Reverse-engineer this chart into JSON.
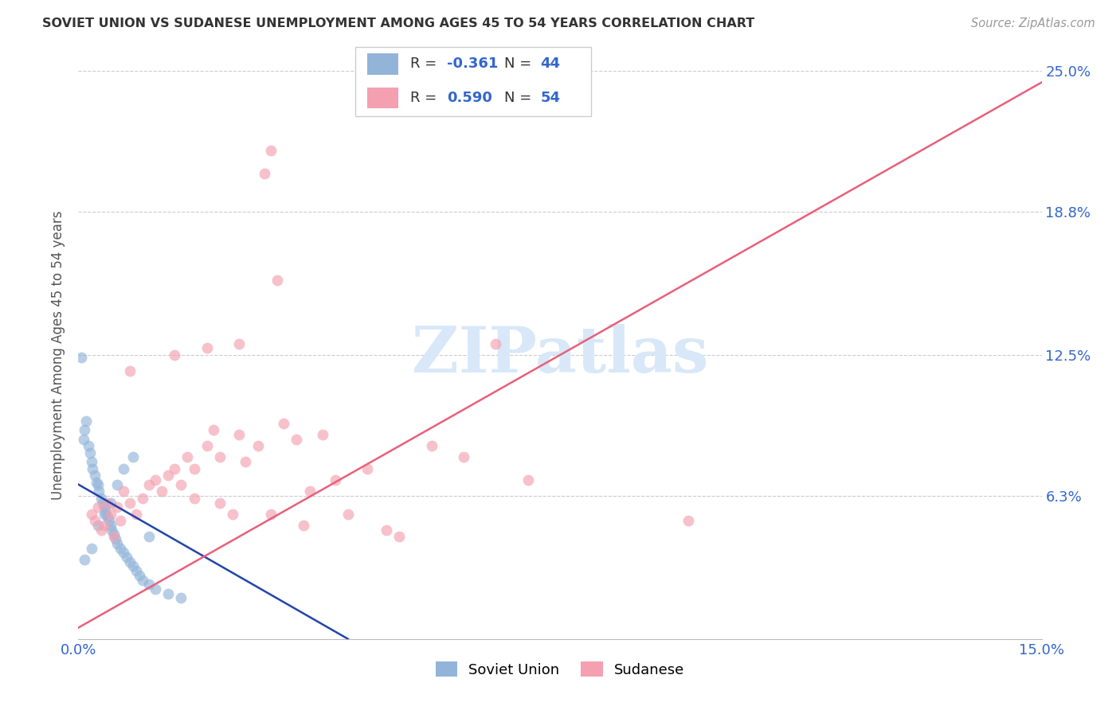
{
  "title": "SOVIET UNION VS SUDANESE UNEMPLOYMENT AMONG AGES 45 TO 54 YEARS CORRELATION CHART",
  "source": "Source: ZipAtlas.com",
  "ylabel": "Unemployment Among Ages 45 to 54 years",
  "xlim": [
    0.0,
    15.0
  ],
  "ylim": [
    0.0,
    25.0
  ],
  "blue_color": "#92B4D9",
  "pink_color": "#F4A0B0",
  "blue_line_color": "#2244AA",
  "pink_line_color": "#E8607A",
  "background_color": "#FFFFFF",
  "watermark_color": "#D8E8F8",
  "r_soviet": -0.361,
  "n_soviet": 44,
  "r_sudanese": 0.59,
  "n_sudanese": 54,
  "soviet_x": [
    0.05,
    0.08,
    0.1,
    0.12,
    0.15,
    0.18,
    0.2,
    0.22,
    0.25,
    0.28,
    0.3,
    0.32,
    0.35,
    0.38,
    0.4,
    0.42,
    0.45,
    0.48,
    0.5,
    0.52,
    0.55,
    0.58,
    0.6,
    0.65,
    0.7,
    0.75,
    0.8,
    0.85,
    0.9,
    0.95,
    1.0,
    1.1,
    1.2,
    1.4,
    1.6,
    0.1,
    0.2,
    0.3,
    0.4,
    0.5,
    0.6,
    0.7,
    0.85,
    1.1
  ],
  "soviet_y": [
    12.4,
    8.8,
    9.2,
    9.6,
    8.5,
    8.2,
    7.8,
    7.5,
    7.2,
    6.9,
    6.8,
    6.5,
    6.2,
    6.0,
    5.8,
    5.6,
    5.4,
    5.2,
    5.0,
    4.8,
    4.6,
    4.4,
    4.2,
    4.0,
    3.8,
    3.6,
    3.4,
    3.2,
    3.0,
    2.8,
    2.6,
    2.4,
    2.2,
    2.0,
    1.8,
    3.5,
    4.0,
    5.0,
    5.5,
    6.0,
    6.8,
    7.5,
    8.0,
    4.5
  ],
  "sudanese_x": [
    0.2,
    0.25,
    0.3,
    0.35,
    0.4,
    0.45,
    0.5,
    0.55,
    0.6,
    0.65,
    0.7,
    0.8,
    0.9,
    1.0,
    1.1,
    1.2,
    1.3,
    1.4,
    1.5,
    1.6,
    1.7,
    1.8,
    2.0,
    2.1,
    2.2,
    2.4,
    2.5,
    2.6,
    2.8,
    3.0,
    3.2,
    3.4,
    3.6,
    3.8,
    4.0,
    4.2,
    4.5,
    5.0,
    5.5,
    6.0,
    6.5,
    7.0,
    3.0,
    2.9,
    3.1,
    0.8,
    1.5,
    2.0,
    2.5,
    9.5,
    3.5,
    2.2,
    4.8,
    1.8
  ],
  "sudanese_y": [
    5.5,
    5.2,
    5.8,
    4.8,
    5.0,
    6.0,
    5.5,
    4.5,
    5.8,
    5.2,
    6.5,
    6.0,
    5.5,
    6.2,
    6.8,
    7.0,
    6.5,
    7.2,
    7.5,
    6.8,
    8.0,
    7.5,
    8.5,
    9.2,
    8.0,
    5.5,
    9.0,
    7.8,
    8.5,
    5.5,
    9.5,
    8.8,
    6.5,
    9.0,
    7.0,
    5.5,
    7.5,
    4.5,
    8.5,
    8.0,
    13.0,
    7.0,
    21.5,
    20.5,
    15.8,
    11.8,
    12.5,
    12.8,
    13.0,
    5.2,
    5.0,
    6.0,
    4.8,
    6.2
  ],
  "pink_line_x0": 0.0,
  "pink_line_y0": 0.5,
  "pink_line_x1": 15.0,
  "pink_line_y1": 24.5,
  "blue_line_x0": 0.0,
  "blue_line_y0": 6.8,
  "blue_line_x1": 4.2,
  "blue_line_y1": 0.0
}
